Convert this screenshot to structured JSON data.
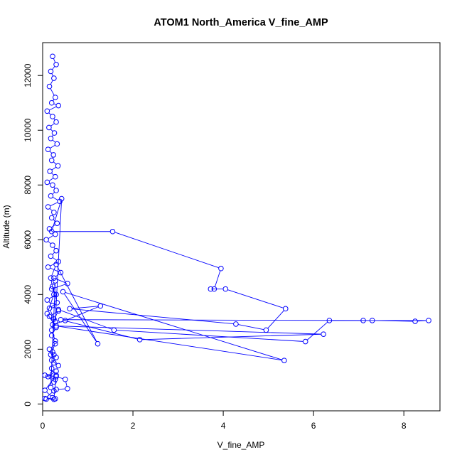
{
  "chart_data": {
    "type": "line",
    "title": "ATOM1 North_America V_fine_AMP",
    "xlabel": "V_fine_AMP",
    "ylabel": "Altitude (m)",
    "xlim": [
      0,
      8.8
    ],
    "ylim": [
      -250,
      13200
    ],
    "xticks": [
      "0",
      "2",
      "4",
      "6",
      "8"
    ],
    "yticks": [
      "0",
      "2000",
      "4000",
      "6000",
      "8000",
      "10000",
      "12000"
    ],
    "grid": false,
    "marker": "open-circle",
    "line_color": "#0000ff",
    "series": [
      {
        "x": [
          0.22,
          0.3,
          0.18,
          0.25,
          0.15,
          0.28,
          0.2,
          0.35,
          0.1,
          0.22,
          0.3,
          0.14,
          0.26,
          0.18,
          0.32,
          0.12,
          0.24,
          0.2,
          0.34,
          0.16,
          0.28,
          0.1,
          0.22,
          0.3,
          0.18,
          0.38,
          0.12,
          0.25,
          0.2,
          0.32,
          0.15,
          0.28,
          0.08,
          0.22,
          0.3,
          0.18,
          0.35,
          0.12,
          0.4,
          0.25,
          0.55,
          0.2,
          0.3,
          0.1,
          0.22,
          0.35,
          0.15,
          0.28,
          0.42,
          0.2,
          1.55,
          3.95,
          3.8,
          3.72,
          4.05,
          5.38,
          4.95,
          4.28,
          0.6,
          1.28,
          0.5,
          0.22,
          0.35,
          1.58,
          5.82,
          6.35,
          7.1,
          8.55,
          8.25,
          7.3,
          0.4,
          2.15,
          6.22,
          0.3,
          5.35,
          0.45,
          1.22,
          0.3,
          0.18,
          0.25,
          0.1,
          0.3,
          0.2,
          0.28,
          0.15,
          0.25,
          0.2,
          0.35,
          0.3,
          0.12,
          0.25,
          0.18,
          0.28,
          0.22,
          0.32,
          0.15,
          0.25,
          0.2,
          0.28,
          0.22,
          0.18,
          0.3,
          0.25,
          0.2,
          0.22,
          0.28,
          0.05,
          0.3,
          0.5,
          0.55,
          0.3,
          0.25,
          0.05,
          0.28,
          0.08,
          0.22,
          0.05,
          0.3,
          0.25
        ],
        "y": [
          12700,
          12400,
          12150,
          11900,
          11600,
          11200,
          11000,
          10900,
          10700,
          10500,
          10300,
          10100,
          9900,
          9700,
          9500,
          9300,
          9100,
          8900,
          8700,
          8500,
          8300,
          8100,
          8000,
          7800,
          7600,
          7400,
          7200,
          7000,
          6800,
          6600,
          6400,
          6200,
          6000,
          5800,
          5600,
          5400,
          5200,
          5000,
          4800,
          4600,
          4400,
          4200,
          4000,
          3800,
          3600,
          3400,
          3200,
          3000,
          7500,
          6300,
          6300,
          4950,
          4200,
          4200,
          4200,
          3480,
          2700,
          2920,
          3480,
          3580,
          3050,
          2900,
          3450,
          2700,
          2280,
          3050,
          3050,
          3050,
          3020,
          3050,
          3080,
          2350,
          2550,
          2850,
          1590,
          4100,
          2200,
          5100,
          4600,
          4000,
          3300,
          2800,
          2500,
          2200,
          2000,
          1800,
          1600,
          1400,
          1200,
          1000,
          800,
          600,
          4500,
          4300,
          3700,
          3500,
          3100,
          2700,
          2300,
          1900,
          1800,
          1700,
          1500,
          1300,
          1100,
          900,
          1050,
          1000,
          900,
          560,
          530,
          480,
          200,
          190,
          180,
          230,
          500,
          1050,
          170
        ]
      }
    ]
  }
}
